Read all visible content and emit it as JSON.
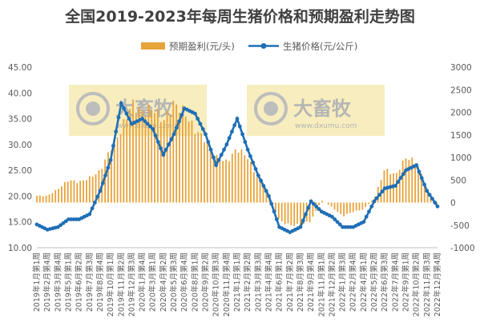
{
  "chart_data": {
    "type": "bar+line",
    "title": "全国2019-2023年每周生猪价格和预期盈利走势图",
    "legend_position": "top",
    "grid": false,
    "watermark": {
      "brand": "大畜牧",
      "url": "www.dxumu.com"
    },
    "y_left": {
      "ylim": [
        10,
        45
      ],
      "ticks": [
        "10.00",
        "15.00",
        "20.00",
        "25.00",
        "30.00",
        "35.00",
        "40.00",
        "45.00"
      ]
    },
    "y_right": {
      "ylim": [
        -1000,
        3000
      ],
      "ticks": [
        "-1000",
        "-500",
        "0",
        "500",
        "1000",
        "1500",
        "2000",
        "2500",
        "3000"
      ]
    },
    "x_tick_labels": [
      "2019年1月第1周",
      "2019年2月第4周",
      "2019年3月第4周",
      "2019年5月第1周",
      "2019年6月第2周",
      "2019年7月第3周",
      "2019年8月第4周",
      "2019年10月第1周",
      "2019年11月第2周",
      "2019年12月第3周",
      "2020年1月第4周",
      "2020年3月第1周",
      "2020年4月第2周",
      "2020年5月第3周",
      "2020年6月第4周",
      "2020年8月第1周",
      "2020年9月第2周",
      "2020年10月第3周",
      "2020年11月第4周",
      "2021年1月第1周",
      "2021年2月第2周",
      "2021年3月第3周",
      "2021年4月第4周",
      "2021年6月第1周",
      "2021年7月第2周",
      "2021年8月第3周",
      "2021年9月第4周",
      "2021年11月第1周",
      "2021年12月第2周",
      "2022年1月第3周",
      "2022年2月第4周",
      "2022年4月第1周",
      "2022年5月第2周",
      "2022年6月第3周",
      "2022年7月第4周",
      "2022年9月第1周",
      "2022年10月第2周",
      "2022年11月第3周",
      "2022年12月第4周"
    ],
    "series": [
      {
        "name": "预期盈利(元/头)",
        "type": "bar",
        "axis": "right",
        "color": "#E8A33A",
        "x_ticks": [
          0,
          1,
          2,
          3,
          4,
          5,
          6,
          7,
          8,
          9,
          10,
          11,
          12,
          13,
          14,
          15,
          16,
          17,
          18,
          19,
          20,
          21,
          22,
          23,
          24,
          25,
          26,
          27,
          28,
          29,
          30,
          31,
          32,
          33,
          34,
          35,
          36,
          37,
          38
        ],
        "values": [
          150,
          150,
          300,
          500,
          450,
          550,
          700,
          1200,
          1600,
          2200,
          2000,
          2100,
          1800,
          2200,
          2000,
          1600,
          1400,
          1000,
          900,
          1200,
          1000,
          500,
          200,
          -400,
          -500,
          -500,
          -400,
          50,
          -100,
          -300,
          -200,
          -150,
          100,
          750,
          600,
          1000,
          900,
          300,
          -50
        ]
      },
      {
        "name": "生猪价格(元/公斤)",
        "type": "line",
        "axis": "left",
        "color": "#1F6FB5",
        "x_ticks": [
          0,
          1,
          2,
          3,
          4,
          5,
          6,
          7,
          8,
          9,
          10,
          11,
          12,
          13,
          14,
          15,
          16,
          17,
          18,
          19,
          20,
          21,
          22,
          23,
          24,
          25,
          26,
          27,
          28,
          29,
          30,
          31,
          32,
          33,
          34,
          35,
          36,
          37,
          38
        ],
        "values": [
          14.5,
          13.5,
          14,
          15.5,
          15.5,
          16.5,
          21,
          27,
          38,
          34,
          35,
          33,
          28,
          32,
          37,
          36,
          32,
          26,
          30,
          35,
          29,
          24,
          20,
          14,
          13,
          14,
          19,
          17,
          16,
          14,
          14,
          15,
          19,
          21.5,
          22,
          25,
          26,
          21,
          18
        ]
      }
    ]
  }
}
